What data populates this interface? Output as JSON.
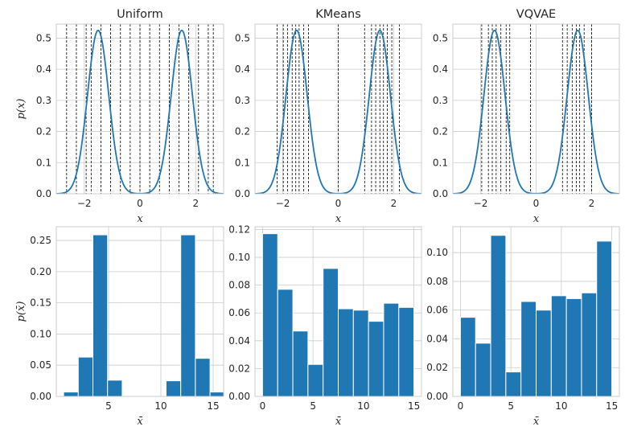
{
  "chart_data": [
    {
      "type": "line",
      "title": "Uniform",
      "xlabel": "x",
      "ylabel": "p(x)",
      "xlim": [
        -3,
        3
      ],
      "ylim": [
        0,
        0.545
      ],
      "xticks": [
        -2,
        0,
        2
      ],
      "xtick_labels": [
        "−2",
        "0",
        "2"
      ],
      "yticks": [
        0,
        0.1,
        0.2,
        0.3,
        0.4,
        0.5
      ],
      "ytick_labels": [
        "0.0",
        "0.1",
        "0.2",
        "0.3",
        "0.4",
        "0.5"
      ],
      "grid": true,
      "density": {
        "components": [
          {
            "mean": -1.5,
            "std": 0.38,
            "weight": 0.5
          },
          {
            "mean": 1.5,
            "std": 0.38,
            "weight": 0.5
          }
        ]
      },
      "series_color": "#1f77b4",
      "vlines": [
        -2.63,
        -2.28,
        -1.93,
        -1.75,
        -1.4,
        -1.05,
        -0.7,
        -0.35,
        0.0,
        0.35,
        0.7,
        1.05,
        1.4,
        1.75,
        2.1,
        2.45,
        2.63
      ]
    },
    {
      "type": "line",
      "title": "KMeans",
      "xlabel": "x",
      "ylabel": "",
      "xlim": [
        -3,
        3
      ],
      "ylim": [
        0,
        0.545
      ],
      "xticks": [
        -2,
        0,
        2
      ],
      "xtick_labels": [
        "−2",
        "0",
        "2"
      ],
      "yticks": [
        0,
        0.1,
        0.2,
        0.3,
        0.4,
        0.5
      ],
      "ytick_labels": [
        "0.0",
        "0.1",
        "0.2",
        "0.3",
        "0.4",
        "0.5"
      ],
      "grid": true,
      "density": {
        "components": [
          {
            "mean": -1.5,
            "std": 0.38,
            "weight": 0.5
          },
          {
            "mean": 1.5,
            "std": 0.38,
            "weight": 0.5
          }
        ]
      },
      "series_color": "#1f77b4",
      "vlines": [
        -2.2,
        -1.98,
        -1.83,
        -1.66,
        -1.53,
        -1.41,
        -1.25,
        -1.07,
        0.0,
        0.95,
        1.2,
        1.35,
        1.5,
        1.63,
        1.77,
        1.93,
        2.2
      ]
    },
    {
      "type": "line",
      "title": "VQVAE",
      "xlabel": "x",
      "ylabel": "",
      "xlim": [
        -3,
        3
      ],
      "ylim": [
        0,
        0.545
      ],
      "xticks": [
        -2,
        0,
        2
      ],
      "xtick_labels": [
        "−2",
        "0",
        "2"
      ],
      "yticks": [
        0,
        0.1,
        0.2,
        0.3,
        0.4,
        0.5
      ],
      "ytick_labels": [
        "0.0",
        "0.1",
        "0.2",
        "0.3",
        "0.4",
        "0.5"
      ],
      "grid": true,
      "density": {
        "components": [
          {
            "mean": -1.5,
            "std": 0.38,
            "weight": 0.5
          },
          {
            "mean": 1.5,
            "std": 0.38,
            "weight": 0.5
          }
        ]
      },
      "series_color": "#1f77b4",
      "vlines": [
        -1.96,
        -1.72,
        -1.58,
        -1.44,
        -1.27,
        -1.08,
        -0.95,
        -0.2,
        0.95,
        1.12,
        1.3,
        1.45,
        1.57,
        1.73,
        2.0
      ]
    },
    {
      "type": "bar",
      "title": "",
      "xlabel": "x̄",
      "ylabel": "p(x̄)",
      "xlim": [
        0,
        16
      ],
      "ylim": [
        0,
        0.272
      ],
      "xticks": [
        5,
        10,
        15
      ],
      "xtick_labels": [
        "5",
        "10",
        "15"
      ],
      "yticks": [
        0,
        0.05,
        0.1,
        0.15,
        0.2,
        0.25
      ],
      "ytick_labels": [
        "0.00",
        "0.05",
        "0.10",
        "0.15",
        "0.20",
        "0.25"
      ],
      "grid": true,
      "bar_color": "#1f77b4",
      "bins": [
        {
          "start": 0.7,
          "end": 2.1,
          "value": 0.007
        },
        {
          "start": 2.1,
          "end": 3.5,
          "value": 0.063
        },
        {
          "start": 3.5,
          "end": 4.9,
          "value": 0.259
        },
        {
          "start": 4.9,
          "end": 6.3,
          "value": 0.026
        },
        {
          "start": 6.3,
          "end": 7.7,
          "value": 0.001
        },
        {
          "start": 7.7,
          "end": 9.1,
          "value": 0
        },
        {
          "start": 9.1,
          "end": 10.5,
          "value": 0
        },
        {
          "start": 10.5,
          "end": 11.9,
          "value": 0.025
        },
        {
          "start": 11.9,
          "end": 13.3,
          "value": 0.259
        },
        {
          "start": 13.3,
          "end": 14.7,
          "value": 0.061
        },
        {
          "start": 14.7,
          "end": 16.1,
          "value": 0.007
        }
      ]
    },
    {
      "type": "bar",
      "title": "",
      "xlabel": "x̄",
      "ylabel": "",
      "xlim": [
        -0.75,
        15.75
      ],
      "ylim": [
        0,
        0.122
      ],
      "xticks": [
        0,
        5,
        10,
        15
      ],
      "xtick_labels": [
        "0",
        "5",
        "10",
        "15"
      ],
      "yticks": [
        0,
        0.02,
        0.04,
        0.06,
        0.08,
        0.1,
        0.12
      ],
      "ytick_labels": [
        "0.00",
        "0.02",
        "0.04",
        "0.06",
        "0.08",
        "0.10",
        "0.12"
      ],
      "grid": true,
      "bar_color": "#1f77b4",
      "bins": [
        {
          "start": 0,
          "end": 1.5,
          "value": 0.117
        },
        {
          "start": 1.5,
          "end": 3,
          "value": 0.077
        },
        {
          "start": 3,
          "end": 4.5,
          "value": 0.047
        },
        {
          "start": 4.5,
          "end": 6,
          "value": 0.023
        },
        {
          "start": 6,
          "end": 7.5,
          "value": 0.092
        },
        {
          "start": 7.5,
          "end": 9,
          "value": 0.063
        },
        {
          "start": 9,
          "end": 10.5,
          "value": 0.062
        },
        {
          "start": 10.5,
          "end": 12,
          "value": 0.054
        },
        {
          "start": 12,
          "end": 13.5,
          "value": 0.067
        },
        {
          "start": 13.5,
          "end": 15,
          "value": 0.064
        }
      ]
    },
    {
      "type": "bar",
      "title": "",
      "xlabel": "x̄",
      "ylabel": "",
      "xlim": [
        -0.75,
        15.75
      ],
      "ylim": [
        0,
        0.118
      ],
      "xticks": [
        0,
        5,
        10,
        15
      ],
      "xtick_labels": [
        "0",
        "5",
        "10",
        "15"
      ],
      "yticks": [
        0,
        0.02,
        0.04,
        0.06,
        0.08,
        0.1
      ],
      "ytick_labels": [
        "0.00",
        "0.02",
        "0.04",
        "0.06",
        "0.08",
        "0.10"
      ],
      "grid": true,
      "bar_color": "#1f77b4",
      "bins": [
        {
          "start": 0,
          "end": 1.5,
          "value": 0.055
        },
        {
          "start": 1.5,
          "end": 3,
          "value": 0.037
        },
        {
          "start": 3,
          "end": 4.5,
          "value": 0.112
        },
        {
          "start": 4.5,
          "end": 6,
          "value": 0.017
        },
        {
          "start": 6,
          "end": 7.5,
          "value": 0.066
        },
        {
          "start": 7.5,
          "end": 9,
          "value": 0.06
        },
        {
          "start": 9,
          "end": 10.5,
          "value": 0.07
        },
        {
          "start": 10.5,
          "end": 12,
          "value": 0.068
        },
        {
          "start": 12,
          "end": 13.5,
          "value": 0.072
        },
        {
          "start": 13.5,
          "end": 15,
          "value": 0.108
        }
      ]
    }
  ]
}
